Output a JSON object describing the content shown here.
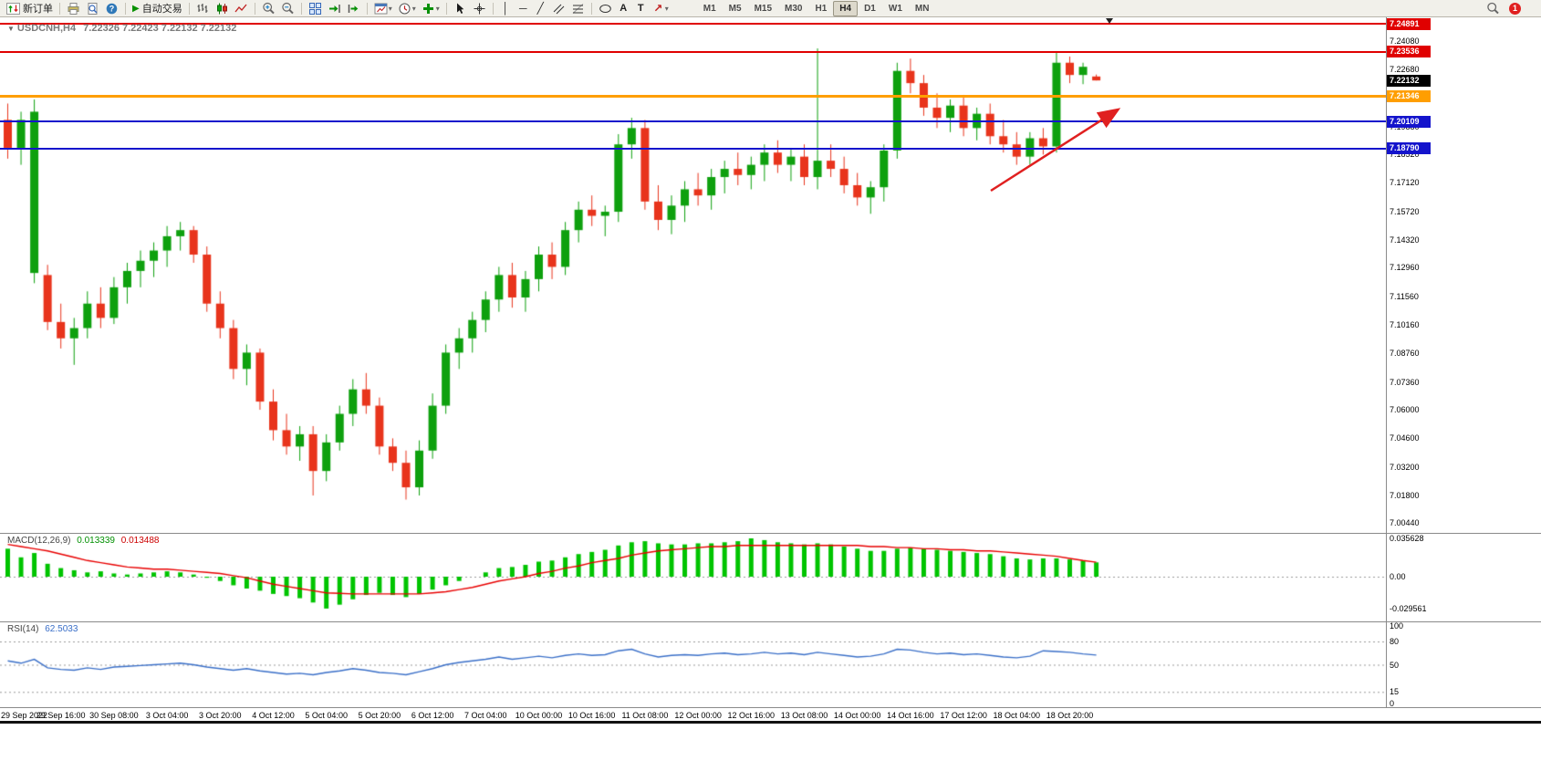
{
  "toolbar": {
    "new_order_label": "新订单",
    "autotrading_label": "自动交易",
    "text_tool_label": "A",
    "label_tool_label": "T",
    "timeframes": [
      "M1",
      "M5",
      "M15",
      "M30",
      "H1",
      "H4",
      "D1",
      "W1",
      "MN"
    ],
    "active_timeframe": "H4",
    "notification_count": "1"
  },
  "chart": {
    "symbol_period": "USDCNH,H4",
    "ohlc_text": "7.22326 7.22423 7.22132 7.22132",
    "current_price_tag": "7.22132"
  },
  "macd": {
    "name": "MACD(12,26,9)",
    "main_value": "0.013339",
    "signal_value": "0.013488"
  },
  "rsi": {
    "name": "RSI(14)",
    "value": "62.5033"
  },
  "chart_data": [
    {
      "type": "candlestick",
      "symbol": "USDCNH",
      "timeframe": "H4",
      "title": "USDCNH,H4 7.22326 7.22423 7.22132 7.22132",
      "ylim": [
        7.0,
        7.25
      ],
      "up_color": "#0ea00e",
      "down_color": "#e8341c",
      "y_ticks": [
        "7.24080",
        "7.22680",
        "7.21280",
        "7.19880",
        "7.18520",
        "7.17120",
        "7.15720",
        "7.14320",
        "7.12960",
        "7.11560",
        "7.10160",
        "7.08760",
        "7.07360",
        "7.06000",
        "7.04600",
        "7.03200",
        "7.01800",
        "7.00440"
      ],
      "x_label_step": 4,
      "x_labels": [
        "29 Sep 2022",
        "29 Sep 16:00",
        "30 Sep 08:00",
        "3 Oct 04:00",
        "3 Oct 20:00",
        "4 Oct 12:00",
        "5 Oct 04:00",
        "5 Oct 20:00",
        "6 Oct 12:00",
        "7 Oct 04:00",
        "10 Oct 00:00",
        "10 Oct 16:00",
        "11 Oct 08:00",
        "12 Oct 00:00",
        "12 Oct 16:00",
        "13 Oct 08:00",
        "14 Oct 00:00",
        "14 Oct 16:00",
        "17 Oct 12:00",
        "18 Oct 04:00",
        "18 Oct 20:00"
      ],
      "levels": [
        {
          "price": 7.24891,
          "label": "7.24891",
          "color": "#e00000",
          "width": 2
        },
        {
          "price": 7.23536,
          "label": "7.23536",
          "color": "#e00000",
          "width": 2
        },
        {
          "price": 7.21346,
          "label": "7.21346",
          "color": "#ff9e00",
          "width": 3
        },
        {
          "price": 7.20109,
          "label": "7.20109",
          "color": "#1414cc",
          "width": 2
        },
        {
          "price": 7.1879,
          "label": "7.18790",
          "color": "#1414cc",
          "width": 2
        }
      ],
      "annotations": [
        {
          "type": "arrow",
          "color": "#e02020",
          "from_price": 7.165,
          "to_price": 7.205,
          "note": "upward trend arrow pointing toward orange level"
        }
      ],
      "candles": [
        [
          7.202,
          7.21,
          7.183,
          7.188
        ],
        [
          7.188,
          7.206,
          7.18,
          7.202
        ],
        [
          7.127,
          7.212,
          7.122,
          7.206
        ],
        [
          7.126,
          7.131,
          7.099,
          7.103
        ],
        [
          7.103,
          7.112,
          7.09,
          7.095
        ],
        [
          7.095,
          7.105,
          7.082,
          7.1
        ],
        [
          7.1,
          7.118,
          7.095,
          7.112
        ],
        [
          7.112,
          7.12,
          7.1,
          7.105
        ],
        [
          7.105,
          7.125,
          7.102,
          7.12
        ],
        [
          7.12,
          7.132,
          7.112,
          7.128
        ],
        [
          7.128,
          7.138,
          7.12,
          7.133
        ],
        [
          7.133,
          7.142,
          7.125,
          7.138
        ],
        [
          7.138,
          7.15,
          7.13,
          7.145
        ],
        [
          7.145,
          7.152,
          7.138,
          7.148
        ],
        [
          7.148,
          7.15,
          7.132,
          7.136
        ],
        [
          7.136,
          7.14,
          7.108,
          7.112
        ],
        [
          7.112,
          7.118,
          7.095,
          7.1
        ],
        [
          7.1,
          7.104,
          7.075,
          7.08
        ],
        [
          7.08,
          7.092,
          7.072,
          7.088
        ],
        [
          7.088,
          7.09,
          7.06,
          7.064
        ],
        [
          7.064,
          7.07,
          7.045,
          7.05
        ],
        [
          7.05,
          7.058,
          7.038,
          7.042
        ],
        [
          7.042,
          7.052,
          7.035,
          7.048
        ],
        [
          7.048,
          7.052,
          7.018,
          7.03
        ],
        [
          7.03,
          7.048,
          7.025,
          7.044
        ],
        [
          7.044,
          7.062,
          7.04,
          7.058
        ],
        [
          7.058,
          7.075,
          7.052,
          7.07
        ],
        [
          7.07,
          7.078,
          7.058,
          7.062
        ],
        [
          7.062,
          7.066,
          7.038,
          7.042
        ],
        [
          7.042,
          7.046,
          7.03,
          7.034
        ],
        [
          7.034,
          7.04,
          7.016,
          7.022
        ],
        [
          7.022,
          7.045,
          7.018,
          7.04
        ],
        [
          7.04,
          7.068,
          7.036,
          7.062
        ],
        [
          7.062,
          7.092,
          7.058,
          7.088
        ],
        [
          7.088,
          7.1,
          7.08,
          7.095
        ],
        [
          7.095,
          7.108,
          7.088,
          7.104
        ],
        [
          7.104,
          7.118,
          7.098,
          7.114
        ],
        [
          7.114,
          7.13,
          7.108,
          7.126
        ],
        [
          7.126,
          7.132,
          7.11,
          7.115
        ],
        [
          7.115,
          7.128,
          7.108,
          7.124
        ],
        [
          7.124,
          7.14,
          7.118,
          7.136
        ],
        [
          7.136,
          7.142,
          7.124,
          7.13
        ],
        [
          7.13,
          7.152,
          7.126,
          7.148
        ],
        [
          7.148,
          7.162,
          7.142,
          7.158
        ],
        [
          7.158,
          7.165,
          7.15,
          7.155
        ],
        [
          7.155,
          7.16,
          7.145,
          7.157
        ],
        [
          7.157,
          7.195,
          7.152,
          7.19
        ],
        [
          7.19,
          7.203,
          7.183,
          7.198
        ],
        [
          7.198,
          7.202,
          7.158,
          7.162
        ],
        [
          7.162,
          7.17,
          7.148,
          7.153
        ],
        [
          7.153,
          7.165,
          7.146,
          7.16
        ],
        [
          7.16,
          7.172,
          7.152,
          7.168
        ],
        [
          7.168,
          7.176,
          7.16,
          7.165
        ],
        [
          7.165,
          7.178,
          7.158,
          7.174
        ],
        [
          7.174,
          7.182,
          7.166,
          7.178
        ],
        [
          7.178,
          7.186,
          7.17,
          7.175
        ],
        [
          7.175,
          7.184,
          7.168,
          7.18
        ],
        [
          7.18,
          7.19,
          7.172,
          7.186
        ],
        [
          7.186,
          7.192,
          7.176,
          7.18
        ],
        [
          7.18,
          7.188,
          7.172,
          7.184
        ],
        [
          7.184,
          7.19,
          7.17,
          7.174
        ],
        [
          7.174,
          7.237,
          7.168,
          7.182
        ],
        [
          7.182,
          7.19,
          7.174,
          7.178
        ],
        [
          7.178,
          7.184,
          7.166,
          7.17
        ],
        [
          7.17,
          7.176,
          7.16,
          7.164
        ],
        [
          7.164,
          7.172,
          7.156,
          7.169
        ],
        [
          7.169,
          7.19,
          7.162,
          7.187
        ],
        [
          7.187,
          7.23,
          7.183,
          7.226
        ],
        [
          7.226,
          7.232,
          7.215,
          7.22
        ],
        [
          7.22,
          7.224,
          7.204,
          7.208
        ],
        [
          7.208,
          7.215,
          7.198,
          7.203
        ],
        [
          7.203,
          7.212,
          7.196,
          7.209
        ],
        [
          7.209,
          7.214,
          7.194,
          7.198
        ],
        [
          7.198,
          7.208,
          7.192,
          7.205
        ],
        [
          7.205,
          7.21,
          7.19,
          7.194
        ],
        [
          7.194,
          7.202,
          7.186,
          7.19
        ],
        [
          7.19,
          7.196,
          7.18,
          7.184
        ],
        [
          7.184,
          7.196,
          7.18,
          7.193
        ],
        [
          7.193,
          7.198,
          7.185,
          7.189
        ],
        [
          7.189,
          7.2355,
          7.186,
          7.23
        ],
        [
          7.23,
          7.233,
          7.22,
          7.224
        ],
        [
          7.224,
          7.23,
          7.2195,
          7.228
        ],
        [
          7.22326,
          7.22423,
          7.22132,
          7.22132
        ]
      ]
    },
    {
      "type": "bar",
      "name": "MACD(12,26,9)",
      "main_value": 0.013339,
      "signal_value": 0.013488,
      "color": "#00c400",
      "signal_color": "#e80000",
      "axis_labels": [
        "0.035628",
        "0.00",
        "-0.029561"
      ],
      "ylim": [
        -0.0407,
        0.0399
      ],
      "histogram": [
        0.026,
        0.018,
        0.022,
        0.012,
        0.008,
        0.006,
        0.004,
        0.005,
        0.003,
        0.002,
        0.003,
        0.004,
        0.005,
        0.004,
        0.002,
        -0.001,
        -0.004,
        -0.008,
        -0.011,
        -0.013,
        -0.016,
        -0.018,
        -0.02,
        -0.024,
        -0.0296,
        -0.026,
        -0.021,
        -0.017,
        -0.015,
        -0.017,
        -0.019,
        -0.016,
        -0.012,
        -0.008,
        -0.004,
        0.0,
        0.004,
        0.008,
        0.009,
        0.011,
        0.014,
        0.015,
        0.018,
        0.021,
        0.023,
        0.025,
        0.029,
        0.032,
        0.033,
        0.031,
        0.03,
        0.03,
        0.031,
        0.031,
        0.032,
        0.033,
        0.0356,
        0.034,
        0.032,
        0.031,
        0.03,
        0.031,
        0.03,
        0.028,
        0.026,
        0.024,
        0.024,
        0.026,
        0.027,
        0.026,
        0.025,
        0.024,
        0.023,
        0.022,
        0.021,
        0.019,
        0.017,
        0.016,
        0.017,
        0.017,
        0.016,
        0.015,
        0.0133
      ],
      "signal": [
        0.03,
        0.028,
        0.026,
        0.024,
        0.021,
        0.018,
        0.015,
        0.013,
        0.011,
        0.009,
        0.008,
        0.007,
        0.007,
        0.006,
        0.005,
        0.004,
        0.003,
        0.001,
        -0.001,
        -0.004,
        -0.007,
        -0.009,
        -0.011,
        -0.013,
        -0.015,
        -0.0155,
        -0.016,
        -0.016,
        -0.016,
        -0.016,
        -0.016,
        -0.016,
        -0.015,
        -0.014,
        -0.012,
        -0.01,
        -0.007,
        -0.004,
        -0.002,
        0.0,
        0.003,
        0.005,
        0.008,
        0.01,
        0.013,
        0.015,
        0.017,
        0.02,
        0.022,
        0.024,
        0.025,
        0.026,
        0.027,
        0.028,
        0.028,
        0.029,
        0.029,
        0.029,
        0.029,
        0.029,
        0.029,
        0.029,
        0.029,
        0.029,
        0.029,
        0.028,
        0.028,
        0.027,
        0.027,
        0.026,
        0.026,
        0.025,
        0.025,
        0.024,
        0.024,
        0.023,
        0.022,
        0.021,
        0.02,
        0.019,
        0.017,
        0.015,
        0.0135
      ]
    },
    {
      "type": "line",
      "name": "RSI(14)",
      "value": 62.5033,
      "color": "#3a6fc8",
      "levels": [
        80,
        50,
        15
      ],
      "axis_labels": [
        "100",
        "80",
        "50",
        "15",
        "0"
      ],
      "ylim": [
        0,
        100
      ],
      "values": [
        55,
        52,
        57,
        46,
        44,
        43,
        46,
        44,
        47,
        48,
        49,
        50,
        51,
        52,
        50,
        47,
        45,
        43,
        45,
        42,
        40,
        38,
        39,
        37,
        40,
        42,
        45,
        43,
        40,
        39,
        37,
        41,
        45,
        50,
        53,
        55,
        57,
        60,
        57,
        59,
        61,
        59,
        62,
        64,
        62,
        63,
        68,
        70,
        64,
        60,
        62,
        63,
        62,
        64,
        65,
        63,
        64,
        66,
        64,
        65,
        63,
        66,
        64,
        62,
        60,
        61,
        64,
        70,
        69,
        66,
        64,
        65,
        63,
        64,
        62,
        60,
        59,
        61,
        68,
        67,
        66,
        64,
        62.5
      ]
    }
  ]
}
